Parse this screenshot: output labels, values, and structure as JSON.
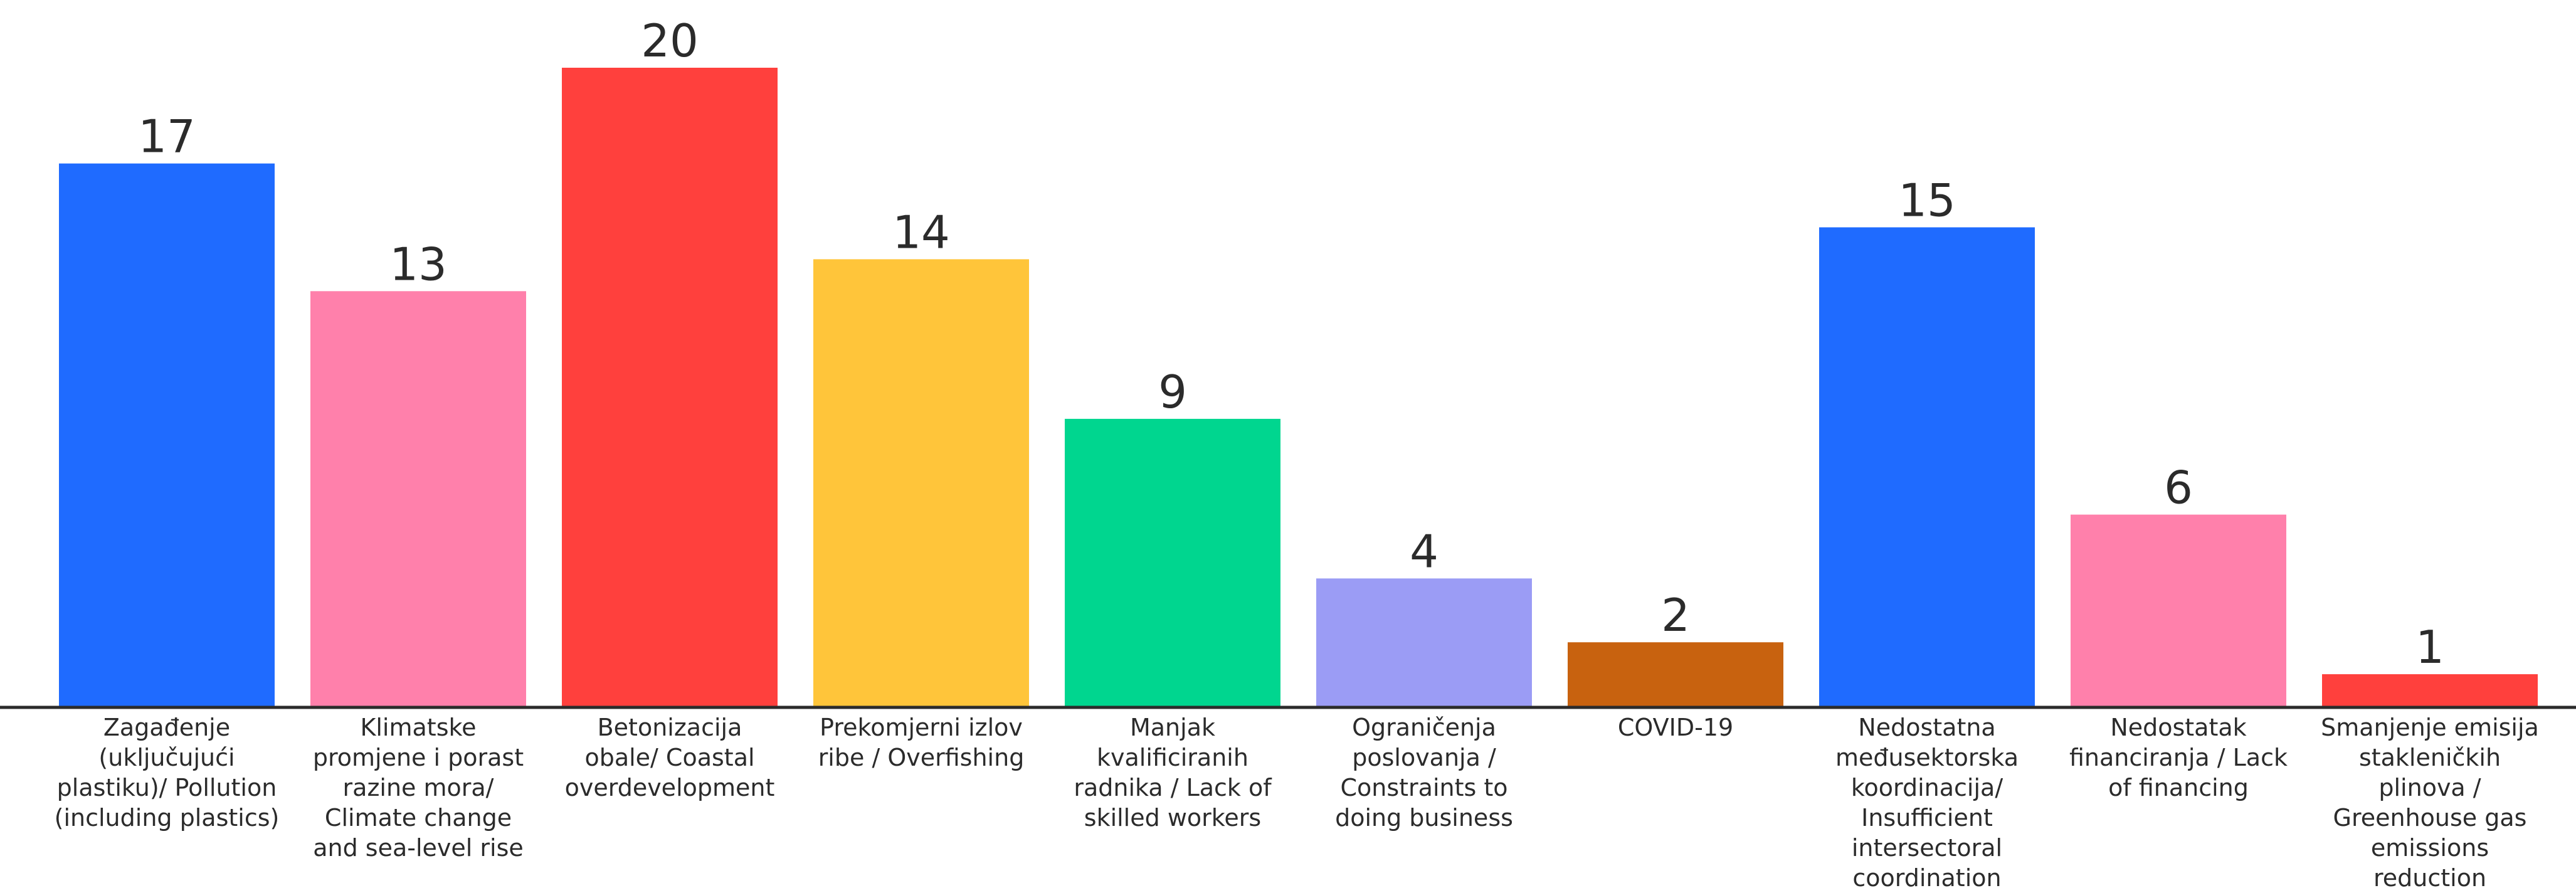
{
  "chart_data": {
    "type": "bar",
    "categories": [
      "Zagađenje (uključujući plastiku)/ Pollution (including plastics)",
      "Klimatske promjene i porast razine mora/ Climate change and sea-level rise",
      "Betonizacija obale/ Coastal overdevelopment",
      "Prekomjerni izlov ribe / Overfishing",
      "Manjak kvalificiranih radnika / Lack of skilled workers",
      "Ograničenja poslovanja / Constraints to doing business",
      "COVID-19",
      "Nedostatna međusektorska koordinacija/ Insufficient intersectoral coordination",
      "Nedostatak financiranja / Lack of financing",
      "Smanjenje emisija stakleničkih plinova / Greenhouse gas emissions reduction"
    ],
    "values": [
      17,
      13,
      20,
      14,
      9,
      4,
      2,
      15,
      6,
      1
    ],
    "colors": [
      "#1f6bff",
      "#ff80ab",
      "#ff403d",
      "#ffc53a",
      "#00d68f",
      "#9b9cf5",
      "#c8620f",
      "#1f6bff",
      "#ff80ab",
      "#ff403d"
    ],
    "ylim": [
      0,
      20
    ],
    "grid": false,
    "legend": "none"
  }
}
